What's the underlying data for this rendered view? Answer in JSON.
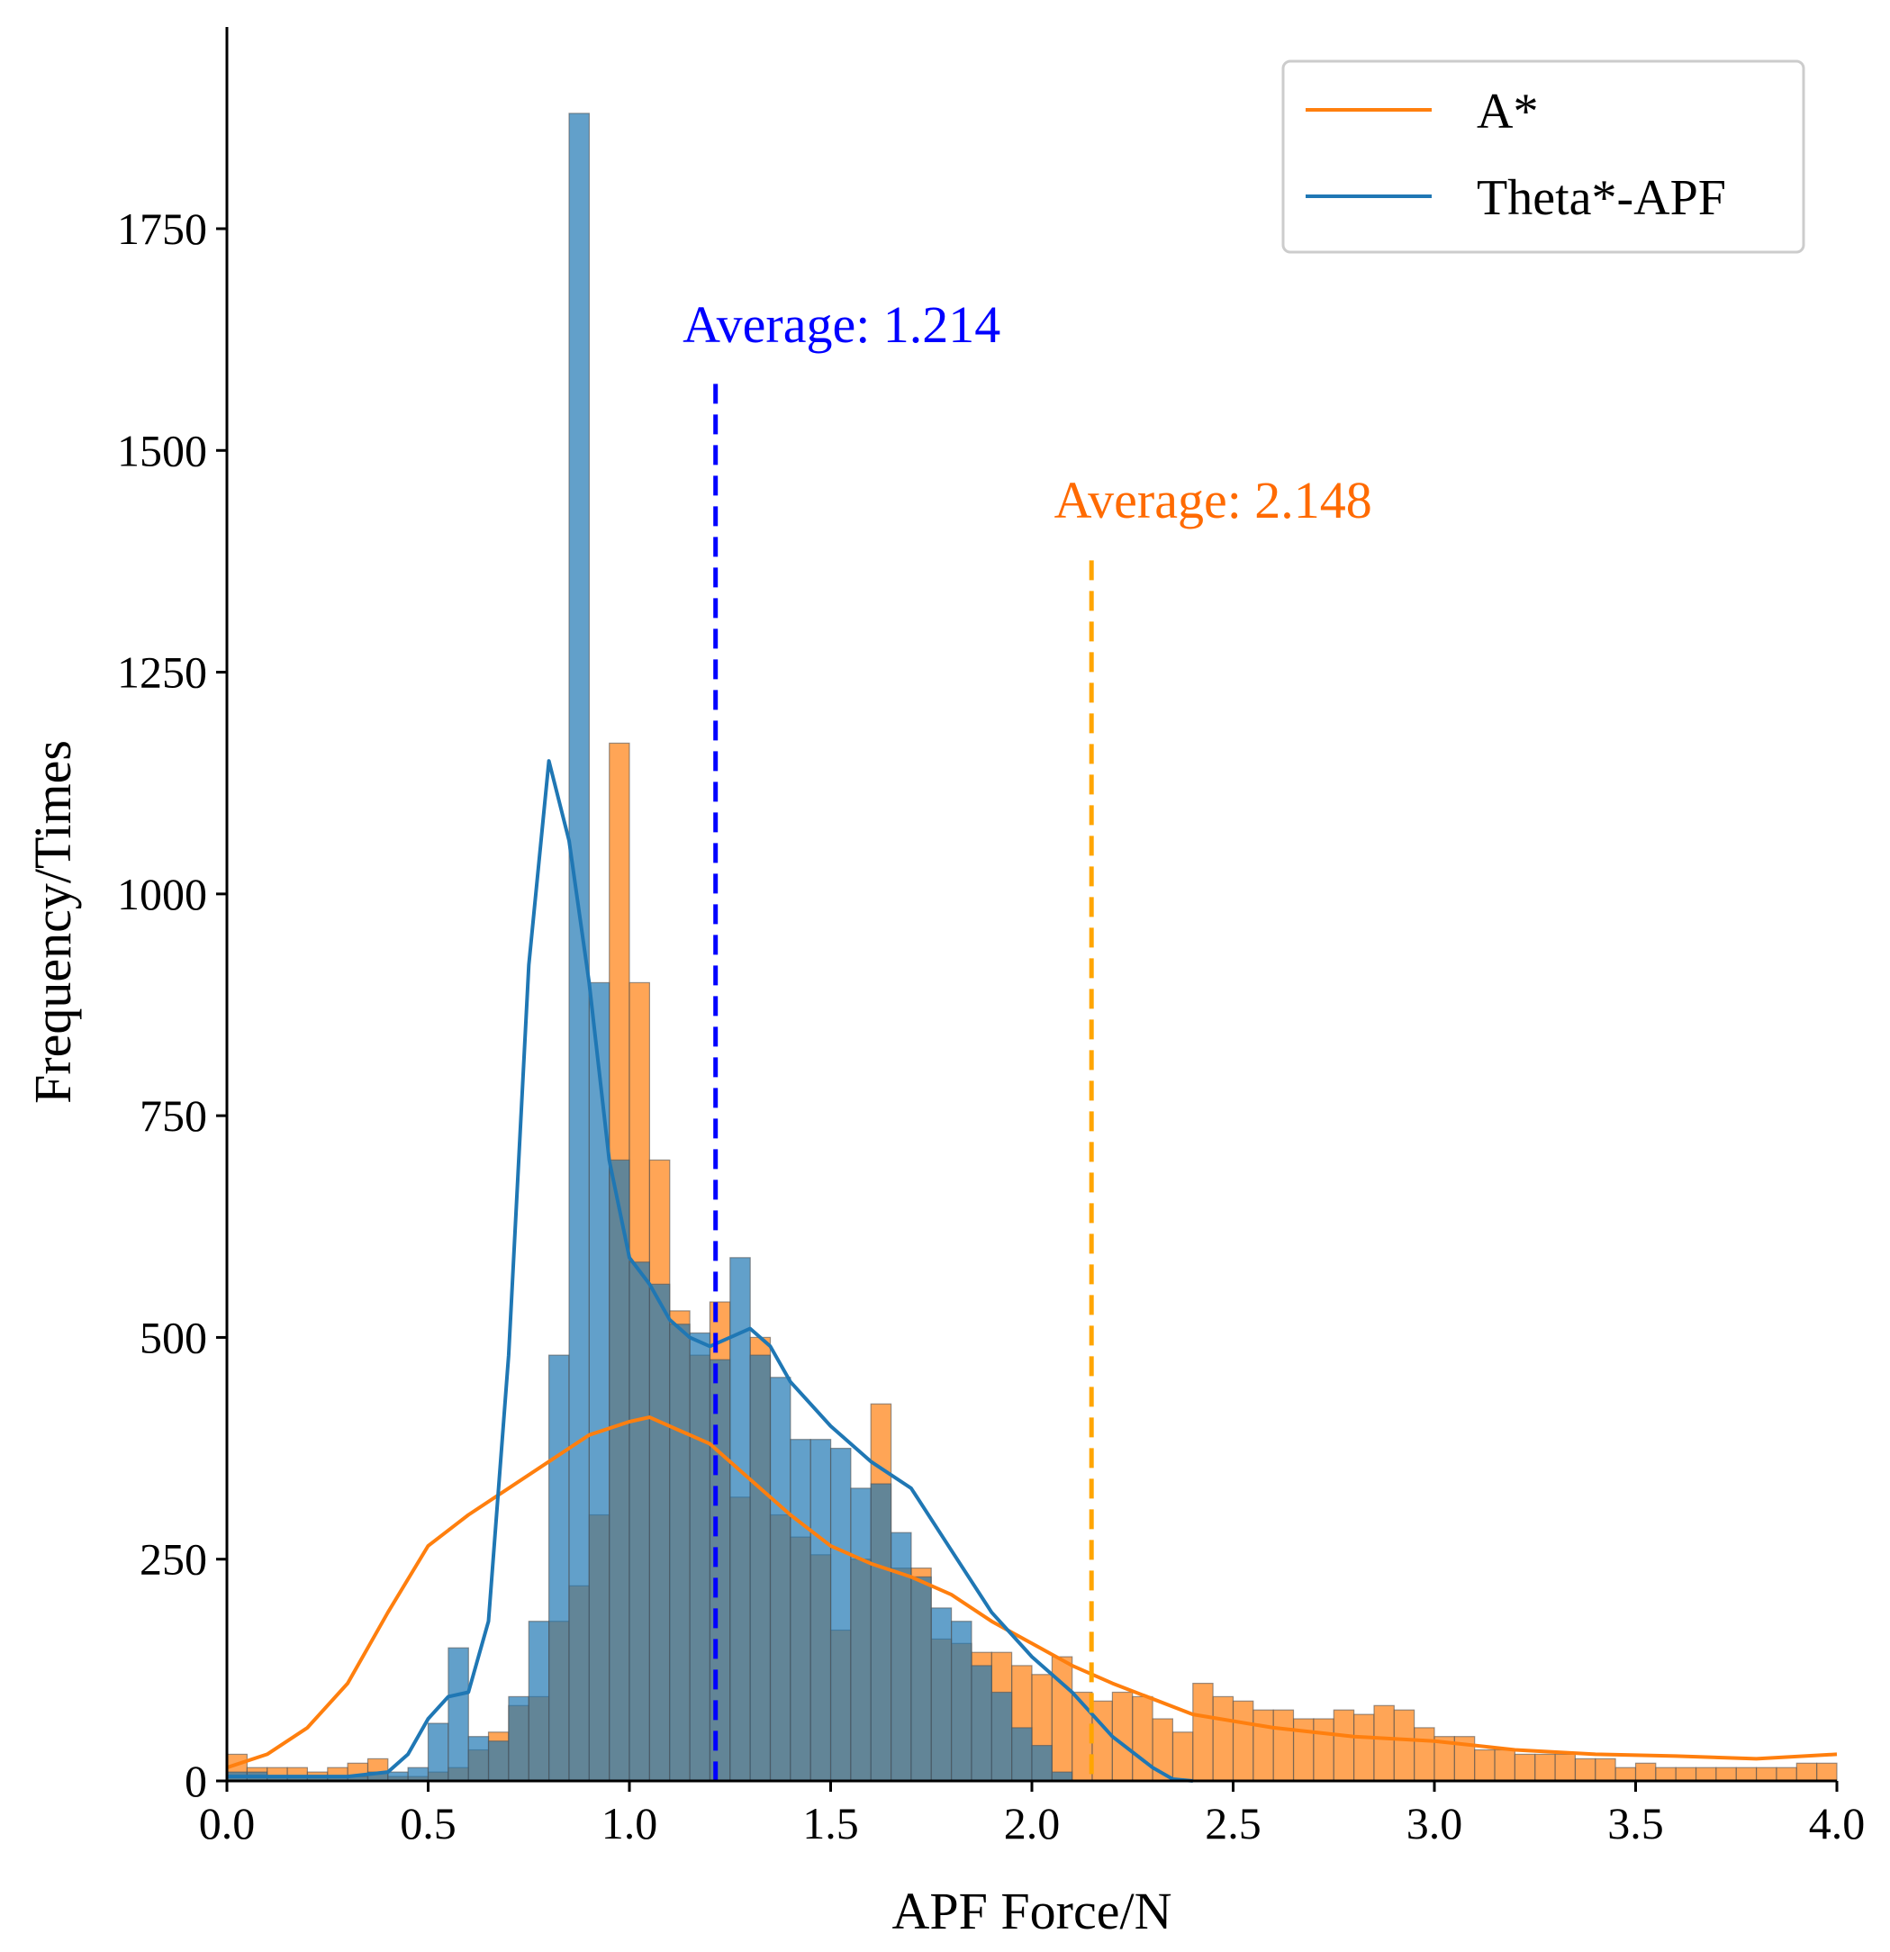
{
  "chart_data": {
    "type": "histogram",
    "title": "",
    "xlabel": "APF Force/N",
    "ylabel": "Frequency/Times",
    "xlim": [
      0.0,
      4.0
    ],
    "ylim": [
      0,
      1900
    ],
    "bin_width": 0.05,
    "x_ticks": [
      0.0,
      0.5,
      1.0,
      1.5,
      2.0,
      2.5,
      3.0,
      3.5,
      4.0
    ],
    "x_tick_labels": [
      "0.0",
      "0.5",
      "1.0",
      "1.5",
      "2.0",
      "2.5",
      "3.0",
      "3.5",
      "4.0"
    ],
    "y_ticks": [
      0,
      250,
      500,
      750,
      1000,
      1250,
      1500,
      1750
    ],
    "y_tick_labels": [
      "0",
      "250",
      "500",
      "750",
      "1000",
      "1250",
      "1500",
      "1750"
    ],
    "legend_position": "top-right",
    "series": [
      {
        "name": "A*",
        "color": "#ff7f0e",
        "bin_start": 0.0,
        "counts": [
          30,
          15,
          15,
          15,
          10,
          15,
          20,
          25,
          5,
          5,
          10,
          15,
          35,
          55,
          85,
          95,
          180,
          220,
          300,
          1170,
          900,
          700,
          530,
          480,
          540,
          320,
          500,
          300,
          275,
          255,
          170,
          250,
          425,
          240,
          240,
          160,
          155,
          145,
          145,
          130,
          120,
          140,
          100,
          90,
          100,
          95,
          70,
          55,
          110,
          95,
          90,
          80,
          80,
          70,
          70,
          80,
          75,
          85,
          80,
          60,
          50,
          50,
          35,
          35,
          30,
          30,
          30,
          25,
          25,
          15,
          20,
          15,
          15,
          15,
          15,
          15,
          15,
          15,
          20,
          20
        ],
        "kde_x": [
          0.0,
          0.1,
          0.2,
          0.3,
          0.4,
          0.5,
          0.6,
          0.7,
          0.8,
          0.9,
          1.0,
          1.05,
          1.1,
          1.2,
          1.3,
          1.4,
          1.5,
          1.6,
          1.7,
          1.8,
          1.9,
          2.0,
          2.1,
          2.2,
          2.4,
          2.6,
          2.8,
          3.0,
          3.2,
          3.4,
          3.6,
          3.8,
          4.0
        ],
        "kde_y": [
          15,
          30,
          60,
          110,
          190,
          265,
          300,
          330,
          360,
          390,
          405,
          410,
          400,
          380,
          340,
          300,
          265,
          245,
          230,
          210,
          180,
          155,
          130,
          110,
          75,
          60,
          50,
          45,
          35,
          30,
          28,
          25,
          30
        ],
        "average_value": 2.148,
        "average_label": "Average: 2.148",
        "average_line_color": "#ffa500",
        "average_text_color": "#ff6a00"
      },
      {
        "name": "Theta*-APF",
        "color": "#1f77b4",
        "bin_start": 0.0,
        "counts": [
          10,
          10,
          5,
          5,
          5,
          5,
          5,
          10,
          10,
          15,
          65,
          150,
          50,
          45,
          95,
          180,
          480,
          1880,
          900,
          700,
          585,
          560,
          515,
          505,
          475,
          590,
          480,
          455,
          385,
          385,
          375,
          330,
          335,
          280,
          230,
          195,
          180,
          130,
          100,
          60,
          40,
          10,
          0,
          0,
          0,
          0,
          0,
          0,
          0,
          0,
          0,
          0,
          0,
          0,
          0,
          0,
          0,
          0,
          0,
          0,
          0,
          0,
          0,
          0,
          0,
          0,
          0,
          0,
          0,
          0,
          0,
          0,
          0,
          0,
          0,
          0,
          0,
          0,
          0,
          0
        ],
        "kde_x": [
          0.0,
          0.1,
          0.2,
          0.3,
          0.4,
          0.45,
          0.5,
          0.55,
          0.6,
          0.65,
          0.7,
          0.75,
          0.8,
          0.85,
          0.9,
          0.95,
          1.0,
          1.05,
          1.1,
          1.15,
          1.2,
          1.25,
          1.3,
          1.35,
          1.4,
          1.5,
          1.6,
          1.7,
          1.8,
          1.9,
          2.0,
          2.1,
          2.2,
          2.3,
          2.35,
          2.4
        ],
        "kde_y": [
          5,
          5,
          5,
          5,
          10,
          30,
          70,
          95,
          100,
          180,
          480,
          920,
          1150,
          1060,
          900,
          700,
          590,
          560,
          520,
          500,
          490,
          500,
          510,
          490,
          450,
          400,
          360,
          330,
          260,
          190,
          140,
          100,
          50,
          15,
          2,
          0
        ],
        "average_value": 1.214,
        "average_label": "Average: 1.214",
        "average_line_color": "#0000ff",
        "average_text_color": "#0000ff"
      }
    ]
  }
}
